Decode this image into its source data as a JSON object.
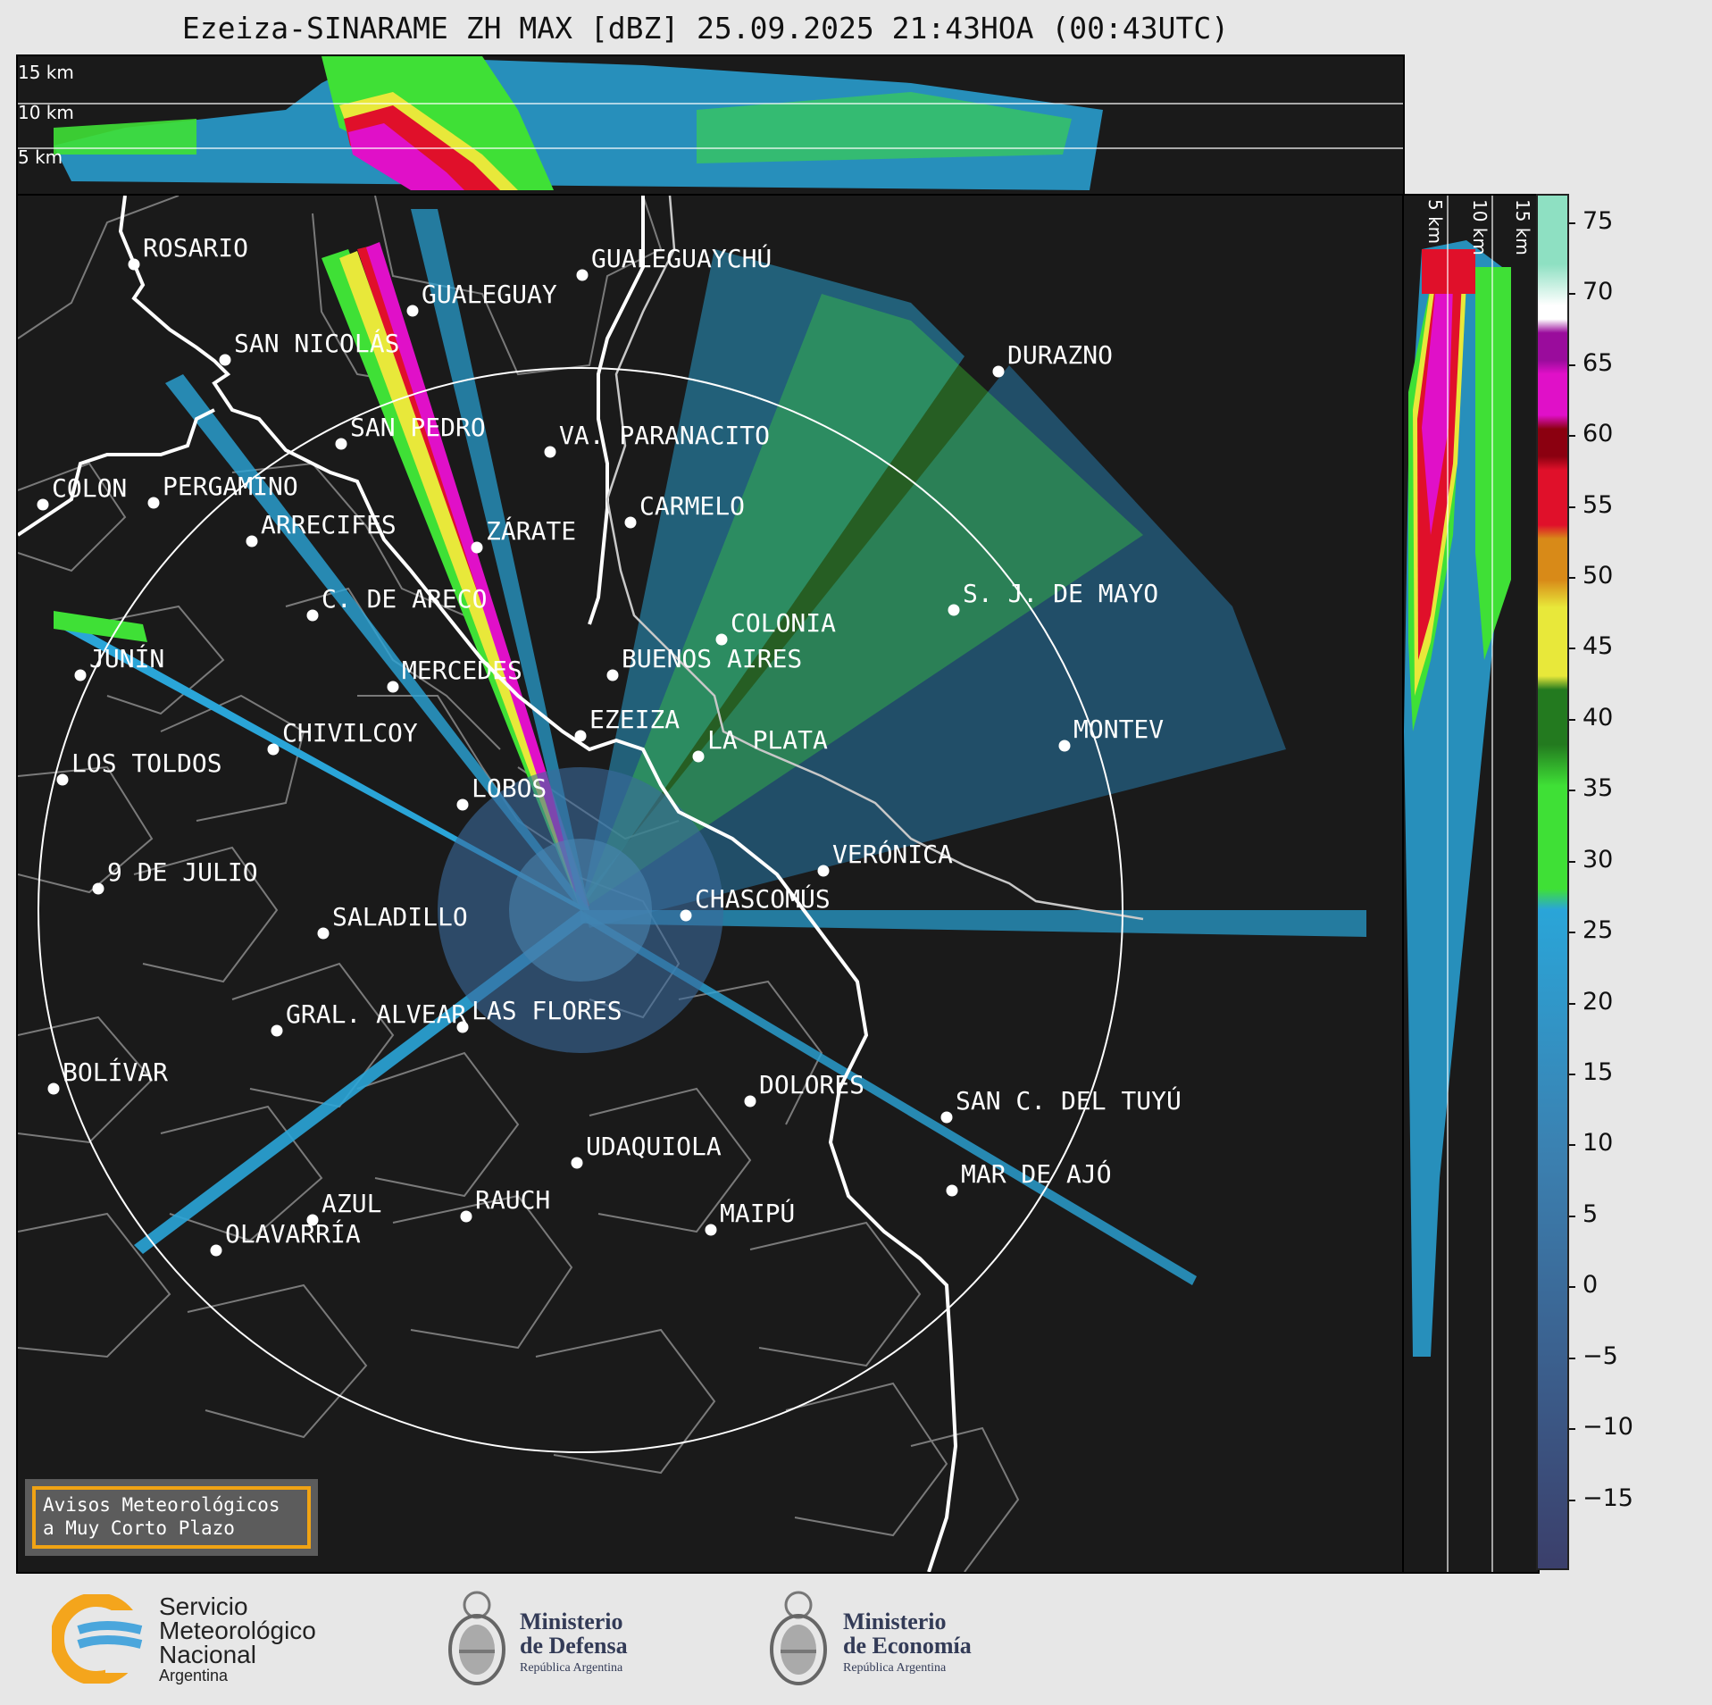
{
  "title": "Ezeiza-SINARAME ZH MAX [dBZ] 25.09.2025 21:43HOA (00:43UTC)",
  "top_panel": {
    "km_labels": [
      "15 km",
      "10 km",
      "5 km"
    ]
  },
  "side_panel": {
    "km_labels": [
      "5 km",
      "10 km",
      "15 km"
    ]
  },
  "cities": [
    {
      "name": "ROSARIO"
    },
    {
      "name": "GUALEGUAYCHÚ"
    },
    {
      "name": "GUALEGUAY"
    },
    {
      "name": "SAN NICOLÁS"
    },
    {
      "name": "DURAZNO"
    },
    {
      "name": "SAN PEDRO"
    },
    {
      "name": "VA. PARANACITO"
    },
    {
      "name": "COLON"
    },
    {
      "name": "PERGAMINO"
    },
    {
      "name": "CARMELO"
    },
    {
      "name": "ARRECIFES"
    },
    {
      "name": "ZÁRATE"
    },
    {
      "name": "S. J. DE MAYO"
    },
    {
      "name": "C. DE ARECO"
    },
    {
      "name": "COLONIA"
    },
    {
      "name": "JUNÍN"
    },
    {
      "name": "BUENOS AIRES"
    },
    {
      "name": "MERCEDES"
    },
    {
      "name": "EZEIZA"
    },
    {
      "name": "MONTEV"
    },
    {
      "name": "CHIVILCOY"
    },
    {
      "name": "LA PLATA"
    },
    {
      "name": "LOS TOLDOS"
    },
    {
      "name": "LOBOS"
    },
    {
      "name": "VERÓNICA"
    },
    {
      "name": "9 DE JULIO"
    },
    {
      "name": "CHASCOMÚS"
    },
    {
      "name": "SALADILLO"
    },
    {
      "name": "GRAL. ALVEAR"
    },
    {
      "name": "LAS FLORES"
    },
    {
      "name": "BOLÍVAR"
    },
    {
      "name": "DOLORES"
    },
    {
      "name": "SAN C. DEL TUYÚ"
    },
    {
      "name": "UDAQUIOLA"
    },
    {
      "name": "MAR DE AJÓ"
    },
    {
      "name": "AZUL"
    },
    {
      "name": "RAUCH"
    },
    {
      "name": "MAIPÚ"
    },
    {
      "name": "OLAVARRÍA"
    }
  ],
  "colorbar": {
    "unit": "dBZ",
    "ticks": [
      "75",
      "70",
      "65",
      "60",
      "55",
      "50",
      "45",
      "40",
      "35",
      "30",
      "25",
      "20",
      "15",
      "10",
      "5",
      "0",
      "−5",
      "−10",
      "−15"
    ],
    "range": [
      -20,
      77
    ],
    "colors": {
      "low": "#3b3f6b",
      "blue_mid": "#3b80b0",
      "blue_hi": "#2aa5d8",
      "green": "#3fe036",
      "green_dark": "#237a1f",
      "yellow": "#e8e83a",
      "orange": "#d88a18",
      "red": "#e0102a",
      "dark_red": "#8b0010",
      "magenta": "#e010c8",
      "purple": "#9a0c9c",
      "white": "#ffffff",
      "aqua": "#8ee0c2"
    }
  },
  "warning_box": {
    "line1": "Avisos Meteorológicos",
    "line2": "a Muy Corto Plazo"
  },
  "footer": {
    "smn": {
      "line1": "Servicio",
      "line2": "Meteorológico",
      "line3": "Nacional",
      "line4": "Argentina"
    },
    "defensa": {
      "line1": "Ministerio",
      "line2": "de Defensa",
      "line3": "República Argentina"
    },
    "economia": {
      "line1": "Ministerio",
      "line2": "de Economía",
      "line3": "República Argentina"
    }
  }
}
